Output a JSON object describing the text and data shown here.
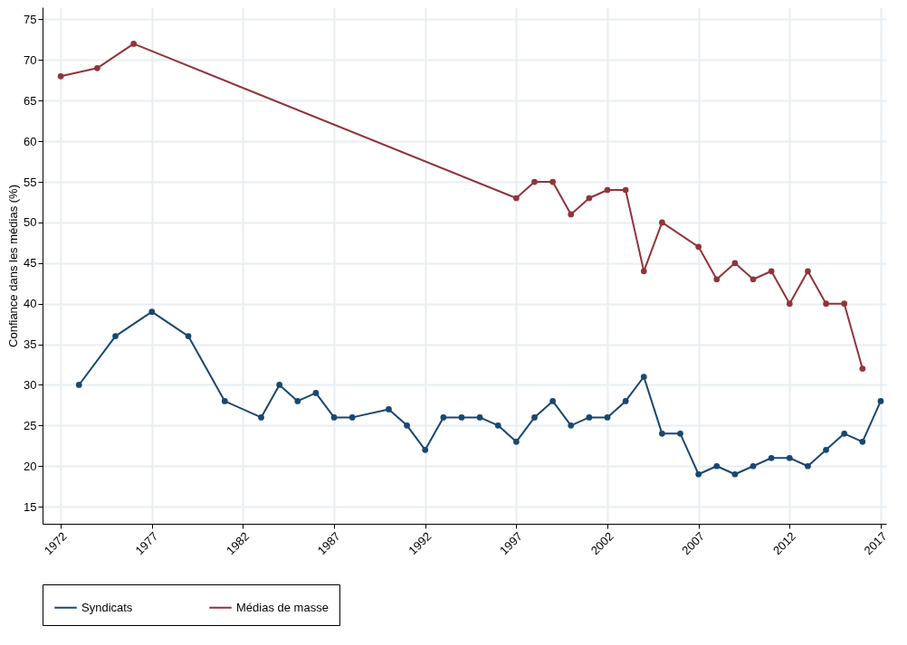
{
  "chart_data": {
    "type": "line",
    "ylabel": "Confiance dans les médias (%)",
    "xlim": [
      1971,
      2017.3
    ],
    "xticks": [
      1972,
      1977,
      1982,
      1987,
      1992,
      1997,
      2002,
      2007,
      2012,
      2017
    ],
    "ylim": [
      12.9,
      76.5
    ],
    "yticks": [
      15,
      20,
      25,
      30,
      35,
      40,
      45,
      50,
      55,
      60,
      65,
      70,
      75
    ],
    "grid": true,
    "legend": "bottom",
    "marker": "circle",
    "line_style": "solid",
    "series": [
      {
        "name": "Syndicats",
        "color": "#1a476f",
        "x": [
          1973,
          1975,
          1977,
          1979,
          1981,
          1983,
          1984,
          1985,
          1986,
          1987,
          1988,
          1990,
          1991,
          1992,
          1993,
          1994,
          1995,
          1996,
          1997,
          1998,
          1999,
          2000,
          2001,
          2002,
          2003,
          2004,
          2005,
          2006,
          2007,
          2008,
          2009,
          2010,
          2011,
          2012,
          2013,
          2014,
          2015,
          2016,
          2017
        ],
        "values": [
          30,
          36,
          39,
          36,
          28,
          26,
          30,
          28,
          29,
          26,
          26,
          27,
          25,
          22,
          26,
          26,
          26,
          25,
          23,
          26,
          28,
          25,
          26,
          26,
          28,
          31,
          24,
          24,
          19,
          20,
          19,
          20,
          21,
          21,
          20,
          22,
          24,
          23,
          28
        ]
      },
      {
        "name": "Médias de masse",
        "color": "#90353b",
        "x": [
          1972,
          1974,
          1976,
          1997,
          1998,
          1999,
          2000,
          2001,
          2002,
          2003,
          2004,
          2005,
          2007,
          2008,
          2009,
          2010,
          2011,
          2012,
          2013,
          2014,
          2015,
          2016
        ],
        "values": [
          68,
          69,
          72,
          53,
          55,
          55,
          51,
          53,
          54,
          54,
          44,
          50,
          47,
          43,
          45,
          43,
          44,
          40,
          44,
          40,
          40,
          32
        ]
      }
    ]
  }
}
